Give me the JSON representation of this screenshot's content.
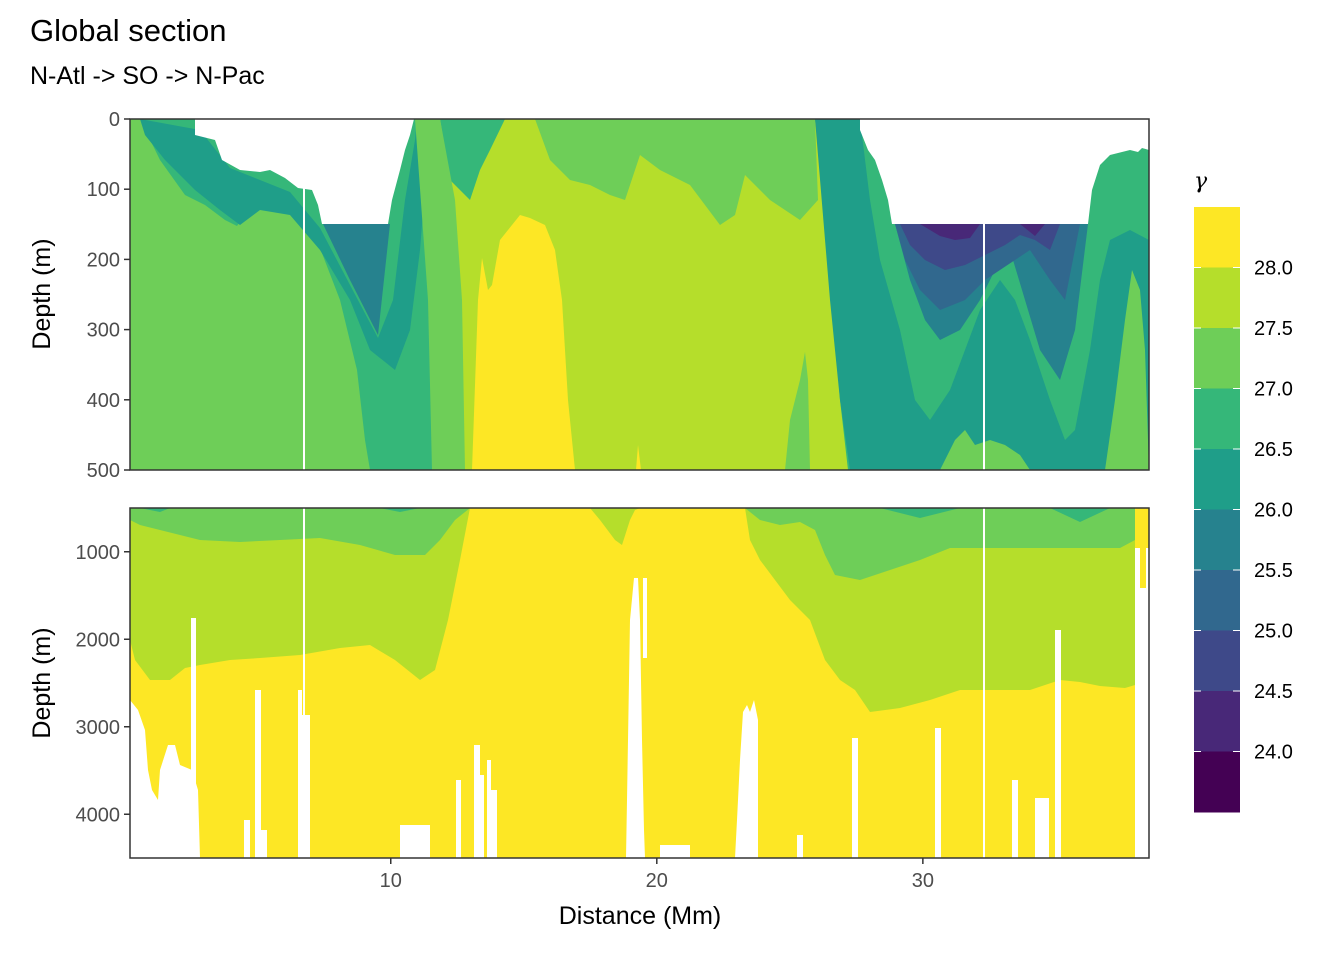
{
  "chart_data": {
    "type": "heatmap",
    "title": "Global section",
    "subtitle": "N-Atl -> SO -> N-Pac",
    "xlabel": "Distance (Mm)",
    "ylabel": "Depth (m)",
    "xlim": [
      0.2,
      38.5
    ],
    "x_ticks": [
      "10",
      "20",
      "30"
    ],
    "x_tick_values": [
      10,
      20,
      30
    ],
    "panels": [
      {
        "name": "upper",
        "ylim": [
          0,
          500
        ],
        "y_ticks": [
          "0",
          "100",
          "200",
          "300",
          "400",
          "500"
        ],
        "y_tick_values": [
          0,
          100,
          200,
          300,
          400,
          500
        ]
      },
      {
        "name": "lower",
        "ylim": [
          500,
          4500
        ],
        "y_ticks": [
          "1000",
          "2000",
          "3000",
          "4000"
        ],
        "y_tick_values": [
          1000,
          2000,
          3000,
          4000
        ]
      }
    ],
    "legend": {
      "title": "γ",
      "position": "right",
      "breaks": [
        "28.0",
        "27.5",
        "27.0",
        "26.5",
        "26.0",
        "25.5",
        "25.0",
        "24.5",
        "24.0"
      ],
      "colors": [
        "#fde725",
        "#b5de2b",
        "#6ece58",
        "#35b779",
        "#1f9e89",
        "#26828e",
        "#31688e",
        "#3e4989",
        "#482878",
        "#440154"
      ]
    },
    "station_lines_x": [
      6.6,
      32.2
    ]
  }
}
